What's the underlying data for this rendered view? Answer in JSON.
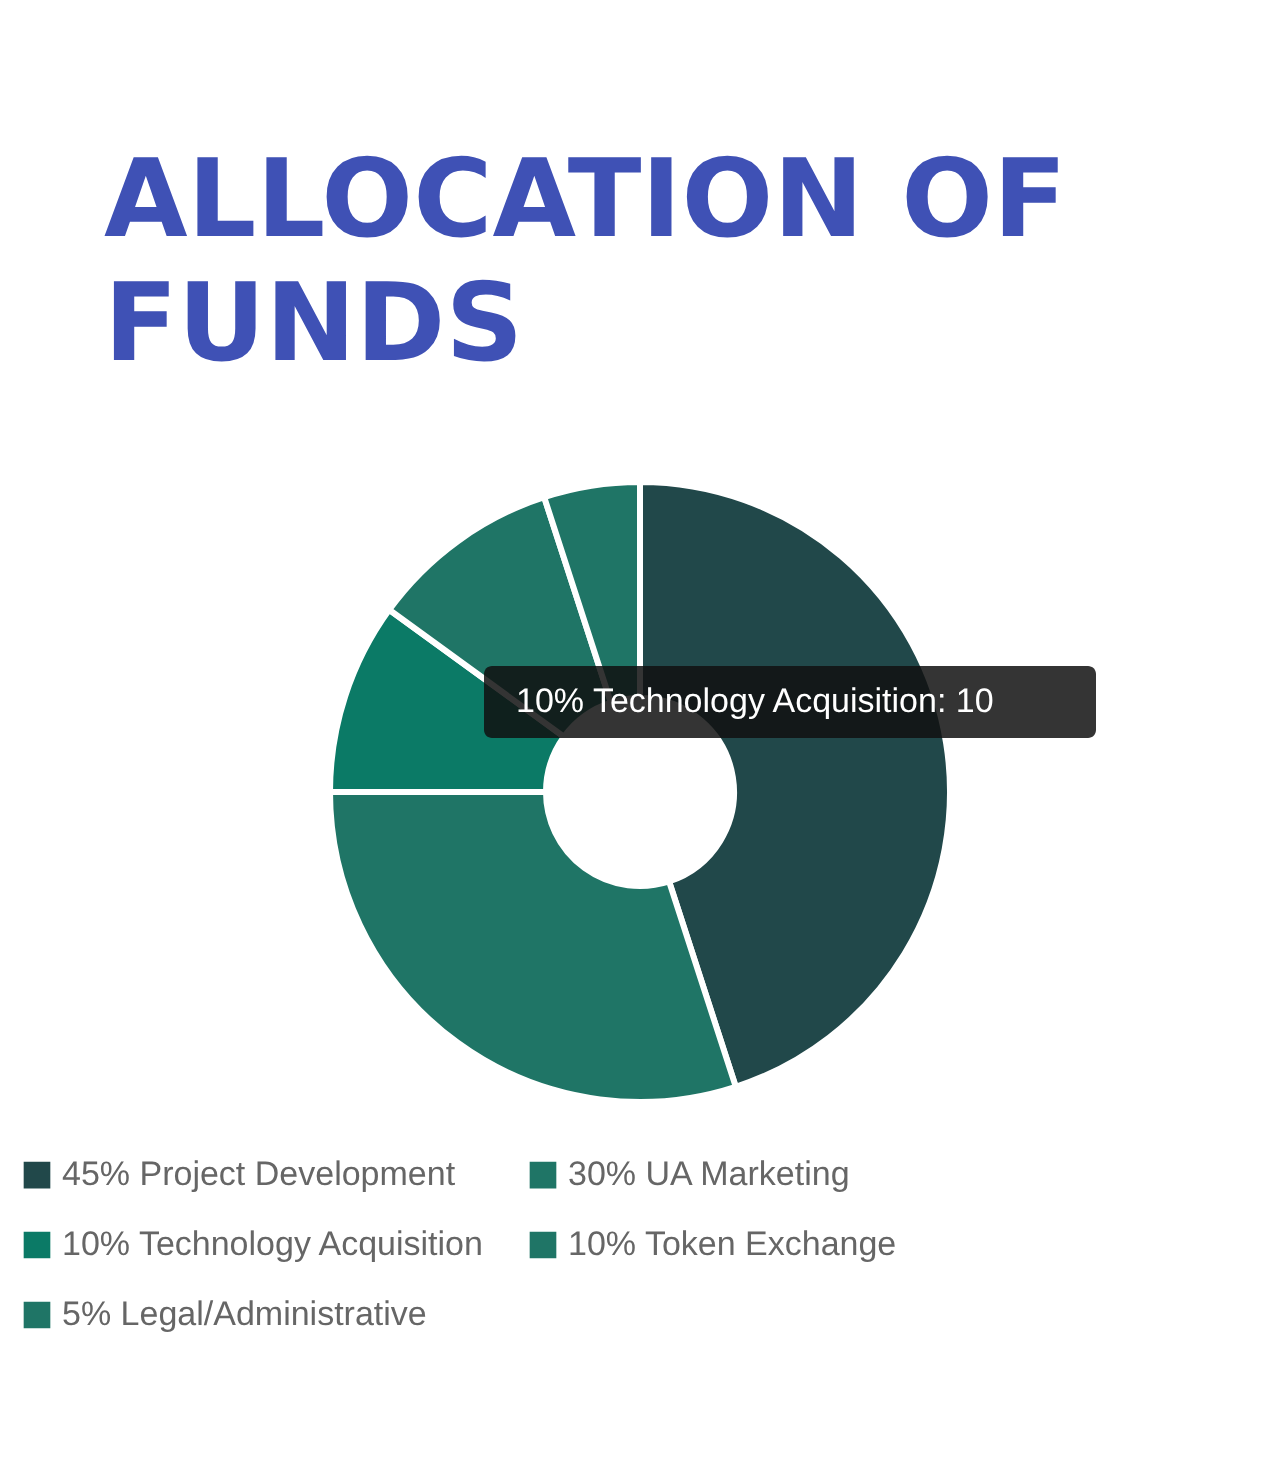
{
  "chart_data": {
    "type": "donut",
    "title": "ALLOCATION OF FUNDS",
    "categories": [
      "45% Project Development",
      "30% UA Marketing",
      "10% Technology Acquisition",
      "10% Token Exchange",
      "5% Legal/Administrative"
    ],
    "values": [
      45,
      30,
      10,
      10,
      5
    ],
    "colors": [
      "#21484a",
      "#1f7566",
      "#0b7a66",
      "#1f7566",
      "#1f7566"
    ],
    "legend": "bottom",
    "annotations": [
      "10% Technology Acquisition: 10"
    ]
  }
}
